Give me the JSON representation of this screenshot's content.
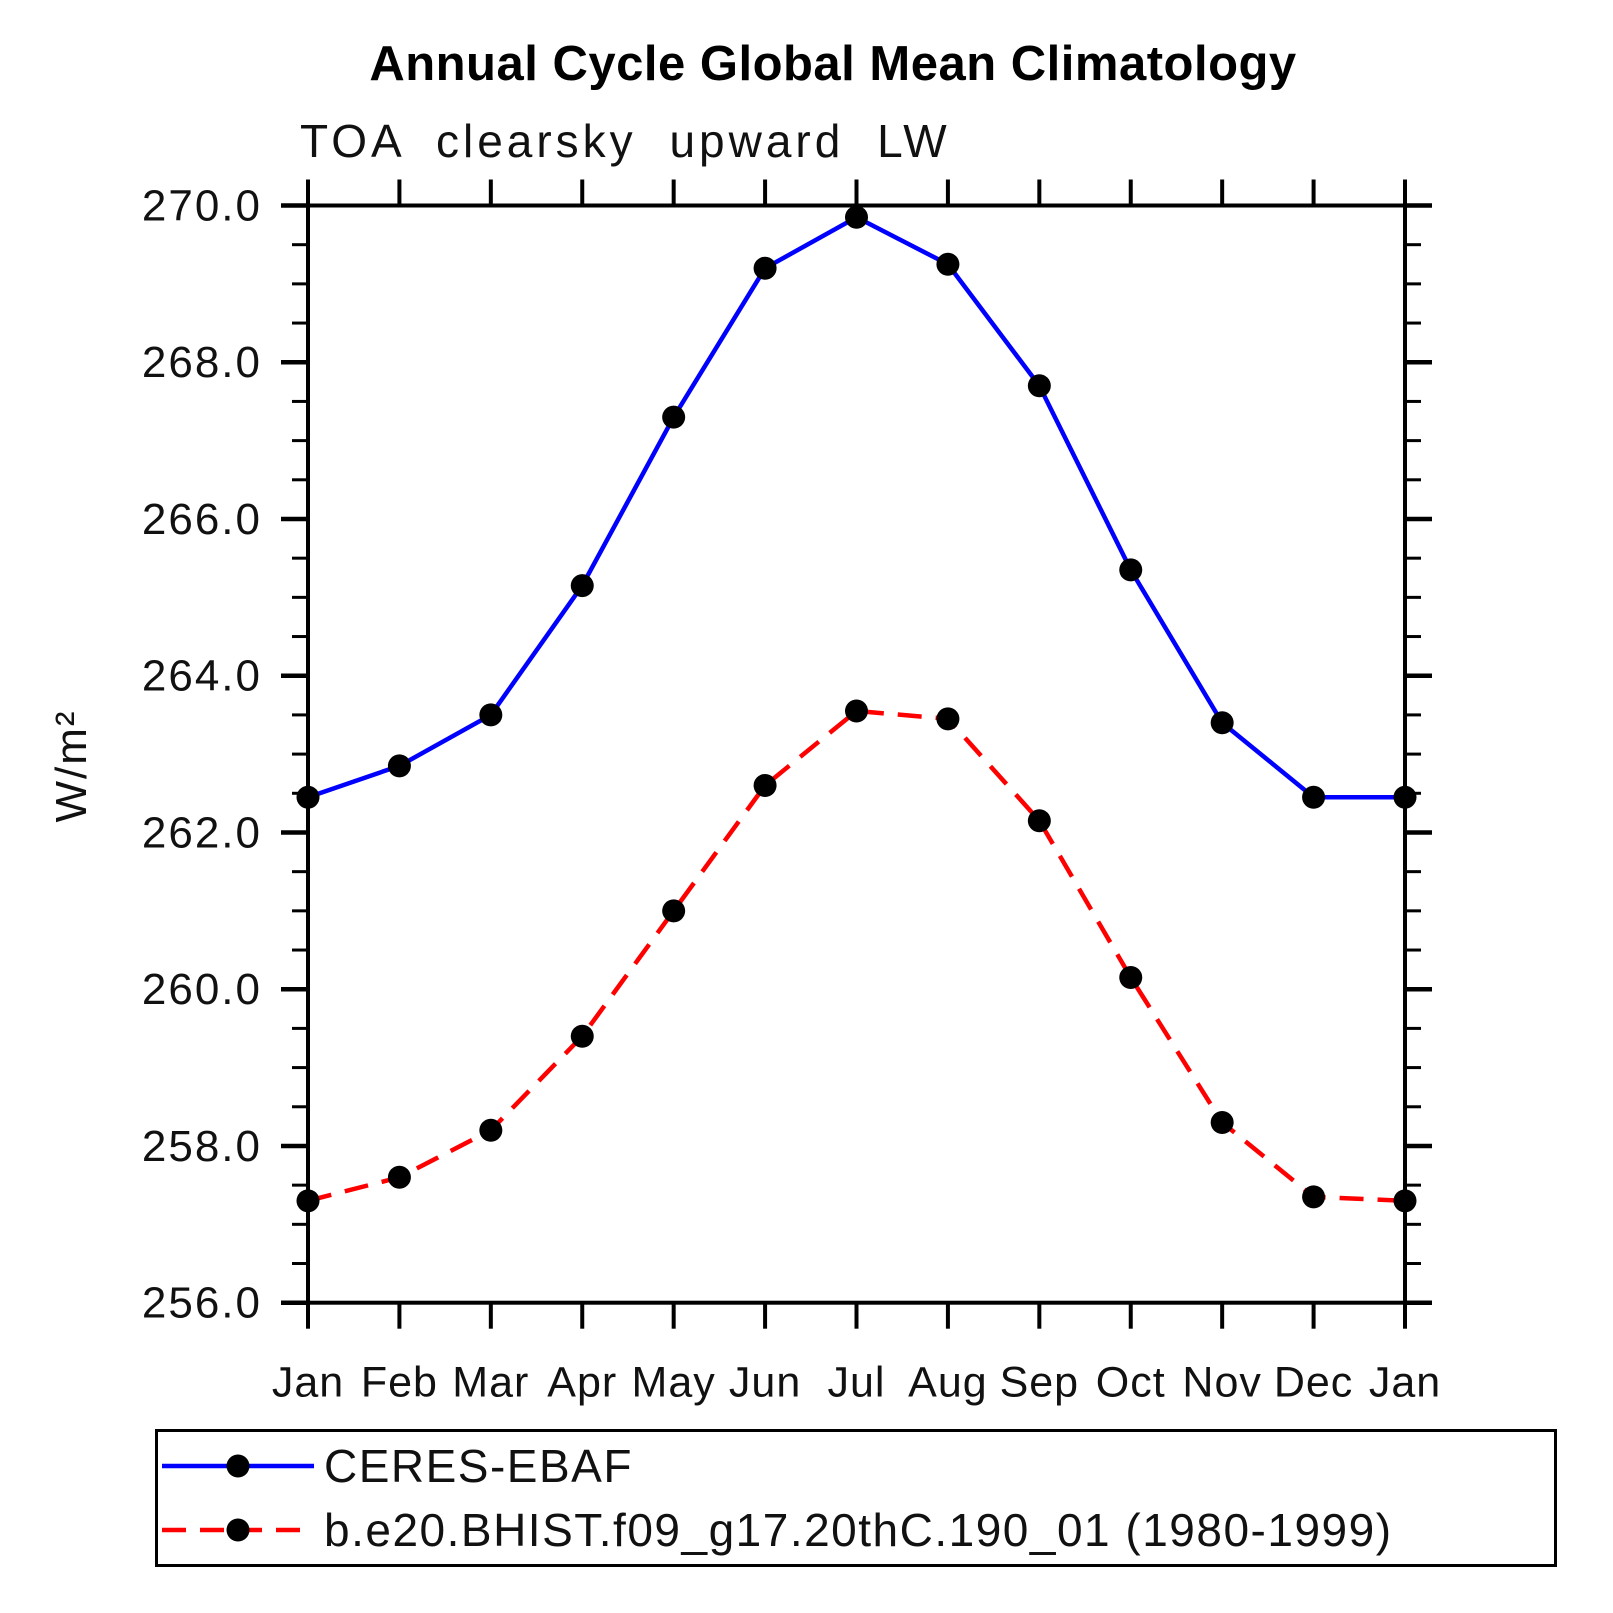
{
  "chart_data": {
    "type": "line",
    "title": "Annual Cycle Global Mean Climatology",
    "subtitle": "TOA clearsky upward LW",
    "ylabel": "W/m²",
    "xlabel": "",
    "categories": [
      "Jan",
      "Feb",
      "Mar",
      "Apr",
      "May",
      "Jun",
      "Jul",
      "Aug",
      "Sep",
      "Oct",
      "Nov",
      "Dec",
      "Jan"
    ],
    "ylim": [
      256.0,
      270.0
    ],
    "y_major_step": 2.0,
    "y_minor_step": 0.5,
    "y_tick_decimals": 1,
    "grid": false,
    "legend_position": "bottom-left",
    "frame_color": "#000000",
    "series": [
      {
        "name": "CERES-EBAF",
        "color": "#0000ff",
        "line_style": "solid",
        "marker": "circle",
        "marker_color": "#000000",
        "values": [
          262.45,
          262.85,
          263.5,
          265.15,
          267.3,
          269.2,
          269.85,
          269.25,
          267.7,
          265.35,
          263.4,
          262.45,
          262.45
        ]
      },
      {
        "name": "b.e20.BHIST.f09_g17.20thC.190_01 (1980-1999)",
        "color": "#ff0000",
        "line_style": "dashed",
        "marker": "circle",
        "marker_color": "#000000",
        "values": [
          257.3,
          257.6,
          258.2,
          259.4,
          261.0,
          262.6,
          263.55,
          263.45,
          262.15,
          260.15,
          258.3,
          257.35,
          257.3
        ]
      }
    ]
  }
}
